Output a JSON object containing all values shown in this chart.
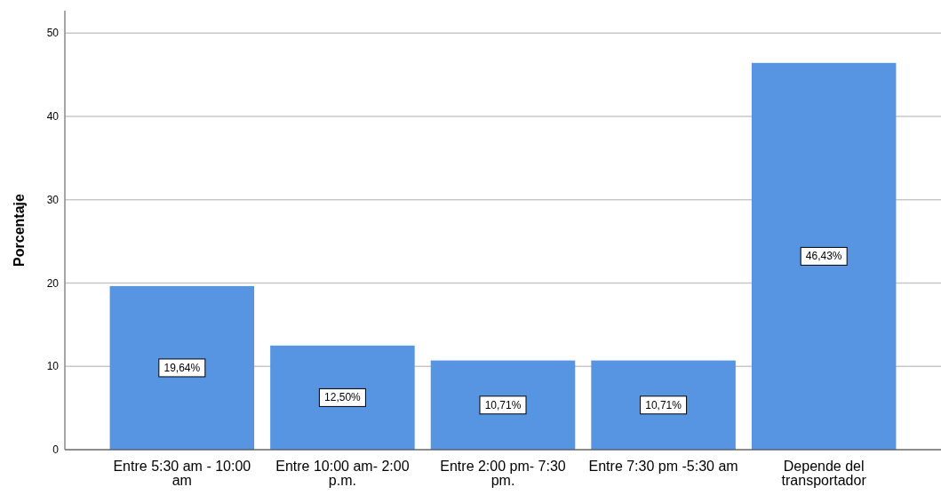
{
  "chart_data": {
    "type": "bar",
    "ylabel": "Porcentaje",
    "categories": [
      "Entre 5:30 am - 10:00 am",
      "Entre 10:00 am- 2:00 p.m.",
      "Entre 2:00 pm- 7:30 pm.",
      "Entre 7:30 pm -5:30 am",
      "Depende del transportador"
    ],
    "values": [
      19.64,
      12.5,
      10.71,
      10.71,
      46.43
    ],
    "value_labels": [
      "19,64%",
      "12,50%",
      "10,71%",
      "10,71%",
      "46,43%"
    ],
    "color": "#5795e3",
    "ylim": [
      0,
      52.7
    ],
    "yticks": [
      0,
      10,
      20,
      30,
      40,
      50
    ],
    "grid": "y"
  }
}
